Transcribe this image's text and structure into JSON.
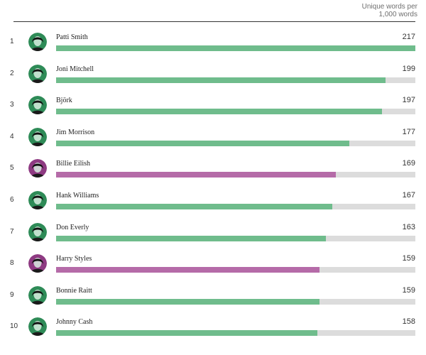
{
  "header": {
    "note_line1": "Unique words per",
    "note_line2": "1,000 words"
  },
  "colors": {
    "green": "#6fbc8c",
    "purple": "#b56ba8",
    "track": "#dcdcdc",
    "avatar_green": "#2e8b57",
    "avatar_purple": "#8e3a82"
  },
  "chart_data": {
    "type": "bar",
    "orientation": "horizontal",
    "xlim": [
      0,
      217
    ],
    "categories": [
      "Patti Smith",
      "Joni Mitchell",
      "Björk",
      "Jim Morrison",
      "Billie Eilish",
      "Hank Williams",
      "Don Everly",
      "Harry Styles",
      "Bonnie Raitt",
      "Johnny Cash"
    ],
    "ranks": [
      "1",
      "2",
      "3",
      "4",
      "5",
      "6",
      "7",
      "8",
      "9",
      "10"
    ],
    "values": [
      217,
      199,
      197,
      177,
      169,
      167,
      163,
      159,
      159,
      158
    ],
    "highlight": [
      "green",
      "green",
      "green",
      "green",
      "purple",
      "green",
      "green",
      "purple",
      "green",
      "green"
    ]
  }
}
